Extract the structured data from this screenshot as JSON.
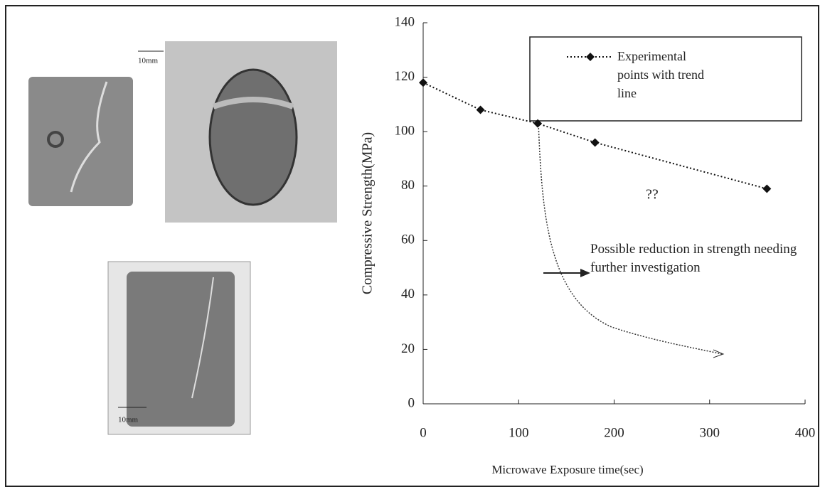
{
  "chart_data": {
    "type": "line",
    "x_label": "Microwave Exposure time(sec)",
    "y_label": "Compressive Strength(MPa)",
    "x": [
      0,
      60,
      120,
      180,
      360
    ],
    "series": [
      {
        "name": "Experimental points with trend line",
        "color": "#111111",
        "values": [
          118,
          108,
          103,
          96,
          79
        ]
      }
    ],
    "xlim": [
      0,
      400
    ],
    "xticks": [
      0,
      100,
      200,
      300,
      400
    ],
    "ylim": [
      0,
      140
    ],
    "yticks": [
      0,
      20,
      40,
      60,
      80,
      100,
      120,
      140
    ],
    "legend": "upper-right",
    "annotations": [
      "??",
      "Possible reduction in strength needing further investigation"
    ]
  },
  "photos": {
    "scale_labels": [
      "10mm",
      "10mm"
    ]
  }
}
